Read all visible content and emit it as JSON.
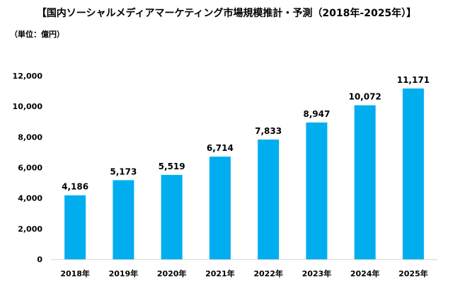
{
  "chart_data": {
    "type": "bar",
    "title": "【国内ソーシャルメディアマーケティング市場規模推計・予測（2018年-2025年）】",
    "unit_label": "（単位：億円）",
    "categories": [
      "2018年",
      "2019年",
      "2020年",
      "2021年",
      "2022年",
      "2023年",
      "2024年",
      "2025年"
    ],
    "values": [
      4186,
      5173,
      5519,
      6714,
      7833,
      8947,
      10072,
      11171
    ],
    "data_labels": [
      "4,186",
      "5,173",
      "5,519",
      "6,714",
      "7,833",
      "8,947",
      "10,072",
      "11,171"
    ],
    "y_ticks": [
      0,
      2000,
      4000,
      6000,
      8000,
      10000,
      12000
    ],
    "y_tick_labels": [
      "0",
      "2,000",
      "4,000",
      "6,000",
      "8,000",
      "10,000",
      "12,000"
    ],
    "ylim": [
      0,
      12000
    ],
    "grid": false,
    "legend": "none",
    "bar_color": "#00AEEF",
    "axis_color": "#D9D9D9",
    "xlabel": "",
    "ylabel": ""
  }
}
